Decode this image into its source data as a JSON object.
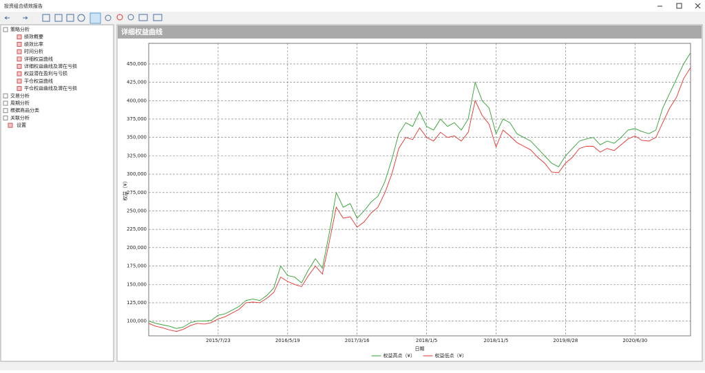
{
  "window": {
    "title": "投资组合绩效报告"
  },
  "tree": [
    {
      "label": "策略分析",
      "children": [
        "绩效概要",
        "绩效比率",
        "时间分析",
        "详细权益曲线",
        "详细权益曲线及潜在亏损",
        "权益潜在盈利与亏损",
        "平仓权益曲线",
        "平仓权益曲线及潜在亏损"
      ]
    },
    {
      "label": "交易分析"
    },
    {
      "label": "周期分析"
    },
    {
      "label": "根据商品分类"
    },
    {
      "label": "关联分析"
    },
    {
      "label": "设置"
    }
  ],
  "chart_data": {
    "type": "line",
    "title": "详细权益曲线",
    "x_label": "日期",
    "y_label": "权益（¥）",
    "legend": "bottom",
    "grid": true,
    "categories": [
      null,
      null,
      null,
      null,
      null,
      null,
      null,
      null,
      null,
      null,
      "2015/7/23",
      null,
      null,
      null,
      null,
      null,
      null,
      null,
      null,
      null,
      "2016/5/19",
      null,
      null,
      null,
      null,
      null,
      null,
      null,
      null,
      null,
      "2017/3/16",
      null,
      null,
      null,
      null,
      null,
      null,
      null,
      null,
      null,
      "2018/1/5",
      null,
      null,
      null,
      null,
      null,
      null,
      null,
      null,
      null,
      "2018/11/5",
      null,
      null,
      null,
      null,
      null,
      null,
      null,
      null,
      null,
      "2019/8/28",
      null,
      null,
      null,
      null,
      null,
      null,
      null,
      null,
      null,
      "2020/6/30",
      null,
      null,
      null,
      null,
      null,
      null,
      null,
      null
    ],
    "series": [
      {
        "name": "权益高点（¥）",
        "color": "#2ca02c",
        "values": [
          100000,
          97000,
          95000,
          93000,
          90000,
          92000,
          98000,
          100000,
          100000,
          101000,
          108000,
          110000,
          115000,
          120000,
          128000,
          130000,
          128000,
          135000,
          145000,
          175000,
          162000,
          160000,
          152000,
          170000,
          185000,
          172000,
          220000,
          275000,
          255000,
          260000,
          240000,
          250000,
          262000,
          270000,
          290000,
          320000,
          355000,
          370000,
          365000,
          385000,
          365000,
          360000,
          375000,
          365000,
          370000,
          360000,
          375000,
          425000,
          400000,
          390000,
          355000,
          375000,
          370000,
          355000,
          350000,
          345000,
          335000,
          325000,
          315000,
          310000,
          325000,
          335000,
          345000,
          348000,
          350000,
          340000,
          345000,
          342000,
          350000,
          360000,
          362000,
          358000,
          355000,
          360000,
          390000,
          410000,
          430000,
          450000,
          465000
        ]
      },
      {
        "name": "权益低点（¥）",
        "color": "#e8302a",
        "values": [
          97000,
          93000,
          91000,
          88000,
          86000,
          89000,
          94000,
          97000,
          96000,
          98000,
          103000,
          106000,
          111000,
          116000,
          125000,
          126000,
          125000,
          131000,
          139000,
          160000,
          154000,
          150000,
          147000,
          162000,
          175000,
          164000,
          208000,
          255000,
          240000,
          242000,
          228000,
          235000,
          247000,
          255000,
          275000,
          300000,
          335000,
          350000,
          347000,
          363000,
          350000,
          345000,
          357000,
          350000,
          352000,
          345000,
          357000,
          400000,
          380000,
          368000,
          337000,
          360000,
          352000,
          343000,
          338000,
          333000,
          323000,
          315000,
          303000,
          302000,
          315000,
          323000,
          335000,
          338000,
          338000,
          330000,
          335000,
          332000,
          340000,
          348000,
          352000,
          346000,
          345000,
          350000,
          370000,
          390000,
          405000,
          430000,
          445000
        ]
      }
    ],
    "ylim": [
      80000,
      478000
    ],
    "yticks": [
      {
        "value": 100000,
        "label": "100,000"
      },
      {
        "value": 125000,
        "label": "125,000"
      },
      {
        "value": 150000,
        "label": "150,000"
      },
      {
        "value": 175000,
        "label": "175,000"
      },
      {
        "value": 200000,
        "label": "200,000"
      },
      {
        "value": 225000,
        "label": "225,000"
      },
      {
        "value": 250000,
        "label": "250,000"
      },
      {
        "value": 275000,
        "label": "275,000"
      },
      {
        "value": 300000,
        "label": "300,000"
      },
      {
        "value": 325000,
        "label": "325,000"
      },
      {
        "value": 350000,
        "label": "350,000"
      },
      {
        "value": 375000,
        "label": "375,000"
      },
      {
        "value": 400000,
        "label": "400,000"
      },
      {
        "value": 425000,
        "label": "425,000"
      },
      {
        "value": 450000,
        "label": "450,000"
      }
    ]
  }
}
